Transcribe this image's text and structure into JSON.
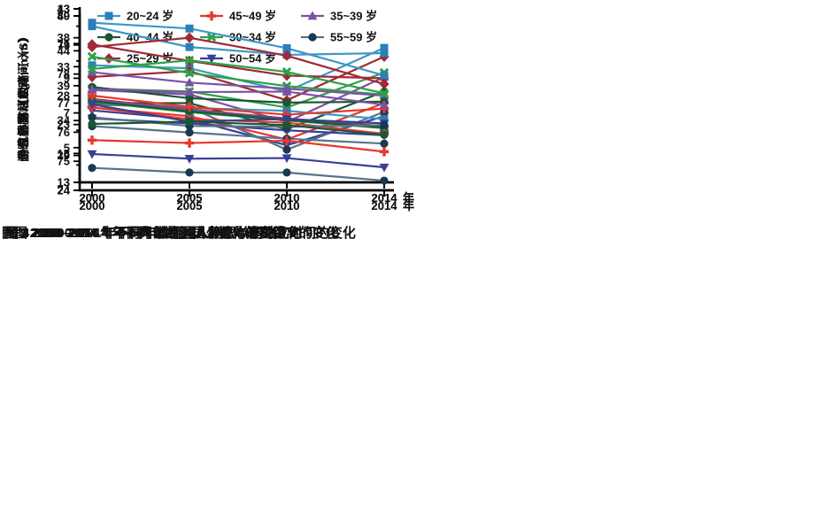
{
  "page": {
    "background": "#ffffff"
  },
  "age_groups": [
    {
      "label": "20~24 岁",
      "color": "#2b7fb8",
      "line_color": "#3d97c4",
      "marker": "square"
    },
    {
      "label": "25~29 岁",
      "color": "#9f2936",
      "marker": "diamond"
    },
    {
      "label": "30~34 岁",
      "color": "#2fa148",
      "marker": "xcross"
    },
    {
      "label": "35~39 岁",
      "color": "#7a52a3",
      "marker": "triangle-up"
    },
    {
      "label": "40~44 岁",
      "color": "#1b5634",
      "marker": "circle"
    },
    {
      "label": "45~49 岁",
      "color": "#e8372c",
      "marker": "plus"
    },
    {
      "label": "50~54 岁",
      "color": "#3a3f96",
      "marker": "triangle-down"
    },
    {
      "label": "55~59 岁",
      "color": "#173a52",
      "line_color": "#587387",
      "marker": "circle"
    }
  ],
  "chart_data": [
    {
      "type": "line",
      "title": "图 1 2000–2014 年不同年龄组国人静息心率的变化",
      "ylabel": "静息心率（次/min）",
      "ylim": [
        74,
        80
      ],
      "yticks": [
        74,
        75,
        76,
        77,
        78,
        79,
        80
      ],
      "x_categories": [
        "2000",
        "2005",
        "2010",
        "2014"
      ],
      "x_suffix": "年",
      "legend_columns": [
        [
          "20~24 岁",
          "40~44 岁",
          "25~29 岁"
        ],
        [
          "45~49 岁",
          "30~34 岁",
          "50~54 岁"
        ],
        [
          "35~39 岁",
          "55~59 岁"
        ]
      ],
      "series": [
        {
          "name": "20~24 岁",
          "values": [
            78.3,
            78.2,
            77.4,
            78.9
          ]
        },
        {
          "name": "25~29 岁",
          "values": [
            77.9,
            78.1,
            77.1,
            78.6
          ]
        },
        {
          "name": "30~34 岁",
          "values": [
            77.5,
            77.4,
            76.85,
            78.05
          ]
        },
        {
          "name": "35~39 岁",
          "values": [
            77.45,
            77.3,
            76.35,
            77.9
          ]
        },
        {
          "name": "40~44 岁",
          "values": [
            77.0,
            77.0,
            76.1,
            77.4
          ]
        },
        {
          "name": "45~49 岁",
          "values": [
            76.85,
            76.55,
            75.75,
            77.0
          ]
        },
        {
          "name": "50~54 岁",
          "values": [
            76.75,
            76.45,
            75.55,
            76.55
          ]
        },
        {
          "name": "55~59 岁",
          "values": [
            76.95,
            76.85,
            75.4,
            76.7
          ]
        }
      ]
    },
    {
      "type": "line",
      "title": "图 2 2000–2014 年不同年龄组国人握力的变化",
      "ylabel": "握力（Kg）",
      "ylim": [
        24,
        49
      ],
      "yticks": [
        24,
        29,
        34,
        39,
        44,
        49
      ],
      "x_categories": [
        "2000",
        "2005",
        "2010",
        "2014"
      ],
      "x_suffix": "年",
      "series": [
        {
          "name": "20~24 岁",
          "values": [
            36.9,
            35.8,
            35.4,
            34.2
          ]
        },
        {
          "name": "25~29 岁",
          "values": [
            37.1,
            35.6,
            34.3,
            33.2
          ]
        },
        {
          "name": "30~34 岁",
          "values": [
            36.7,
            35.2,
            34.0,
            32.9
          ]
        },
        {
          "name": "35~39 岁",
          "values": [
            37.0,
            35.5,
            34.2,
            33.1
          ]
        },
        {
          "name": "40~44 岁",
          "values": [
            36.8,
            35.3,
            34.1,
            33.0
          ]
        },
        {
          "name": "45~49 岁",
          "values": [
            35.9,
            34.2,
            33.7,
            32.1
          ]
        },
        {
          "name": "50~54 岁",
          "values": [
            34.3,
            33.6,
            32.6,
            31.9
          ]
        },
        {
          "name": "55~59 岁",
          "values": [
            33.2,
            32.3,
            31.4,
            30.7
          ]
        }
      ]
    },
    {
      "type": "line",
      "title": "图 3 2000–2014 年不同年龄组国人坐位体前屈距离的变化",
      "ylabel": "坐位体前屈距离（cm）",
      "ylim": [
        3,
        13
      ],
      "yticks": [
        3,
        5,
        7,
        9,
        11,
        13
      ],
      "yticks_minor": [
        4,
        6,
        8,
        10,
        12
      ],
      "x_categories": [
        "2000",
        "2005",
        "2010",
        "2014"
      ],
      "x_suffix": "年",
      "series": [
        {
          "name": "20~24 岁",
          "values": [
            12.0,
            10.8,
            10.35,
            10.45
          ]
        },
        {
          "name": "25~29 岁",
          "values": [
            10.95,
            10.0,
            9.15,
            9.0
          ]
        },
        {
          "name": "30~34 岁",
          "values": [
            10.25,
            9.3,
            8.55,
            8.05
          ]
        },
        {
          "name": "35~39 岁",
          "values": [
            9.35,
            8.75,
            8.4,
            8.0
          ]
        },
        {
          "name": "40~44 岁",
          "values": [
            8.5,
            7.85,
            7.6,
            7.65
          ]
        },
        {
          "name": "45~49 岁",
          "values": [
            8.0,
            7.35,
            6.9,
            7.25
          ]
        },
        {
          "name": "50~54 岁",
          "values": [
            7.5,
            6.5,
            6.65,
            6.4
          ]
        },
        {
          "name": "55~59 岁",
          "values": [
            6.75,
            6.25,
            6.2,
            6.3
          ]
        }
      ]
    },
    {
      "type": "line",
      "title": "图 4 2000–2014 年不同年龄组国人闭眼单腿站立时间的变化",
      "ylabel": "闭眼单腿站立时间（S）",
      "ylim": [
        13,
        43
      ],
      "yticks": [
        13,
        18,
        23,
        28,
        33,
        38,
        43
      ],
      "x_categories": [
        "2000",
        "2005",
        "2010",
        "2014"
      ],
      "x_suffix": "年",
      "series": [
        {
          "name": "20~24 岁",
          "values": [
            40.6,
            39.6,
            36.2,
            31.5
          ]
        },
        {
          "name": "25~29 岁",
          "values": [
            36.4,
            38.0,
            34.9,
            30.0
          ]
        },
        {
          "name": "30~34 岁",
          "values": [
            32.6,
            34.1,
            32.1,
            28.4
          ]
        },
        {
          "name": "35~39 岁",
          "values": [
            29.1,
            28.6,
            28.7,
            26.4
          ]
        },
        {
          "name": "40~44 岁",
          "values": [
            23.1,
            23.5,
            22.9,
            21.2
          ]
        },
        {
          "name": "45~49 岁",
          "values": [
            20.3,
            19.8,
            20.2,
            18.3
          ]
        },
        {
          "name": "50~54 岁",
          "values": [
            17.9,
            17.1,
            17.2,
            15.6
          ]
        },
        {
          "name": "55~59 岁",
          "values": [
            15.5,
            14.7,
            14.7,
            13.3
          ]
        }
      ]
    }
  ]
}
